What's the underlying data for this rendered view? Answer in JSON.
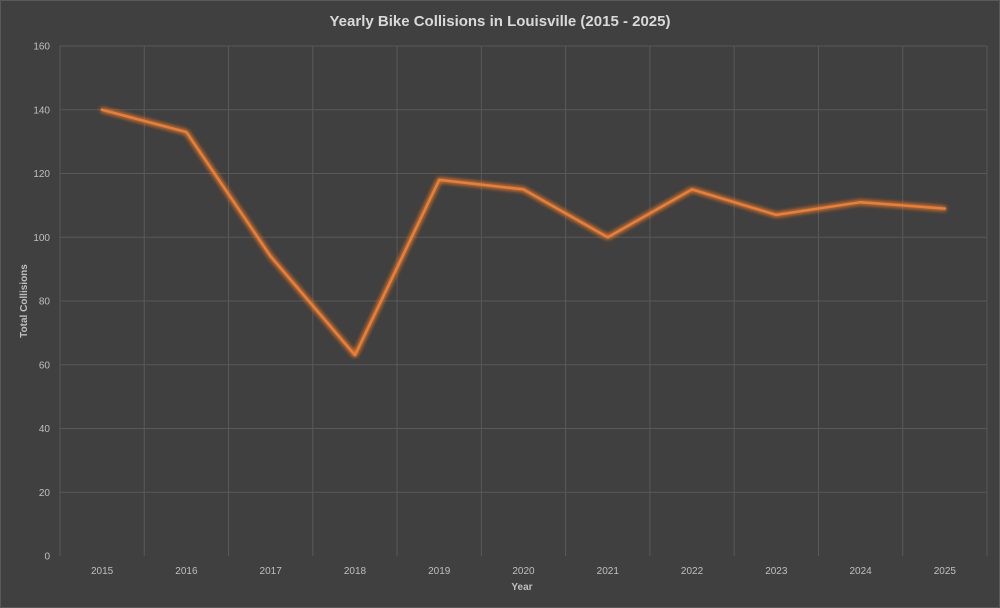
{
  "chart_data": {
    "type": "line",
    "title": "Yearly Bike Collisions in Louisville (2015 - 2025)",
    "xlabel": "Year",
    "ylabel": "Total Collisions",
    "categories": [
      "2015",
      "2016",
      "2017",
      "2018",
      "2019",
      "2020",
      "2021",
      "2022",
      "2023",
      "2024",
      "2025"
    ],
    "series": [
      {
        "values": [
          140,
          133,
          94,
          63,
          118,
          115,
          100,
          115,
          107,
          111,
          109
        ]
      }
    ],
    "ylim": [
      0,
      160
    ],
    "yticks": [
      0,
      20,
      40,
      60,
      80,
      100,
      120,
      140,
      160
    ],
    "grid": true,
    "legend": "none",
    "colors": {
      "background": "#404040",
      "line": "#ed7d31",
      "grid": "#595959",
      "text": "#bfbfbf",
      "title": "#d9d9d9"
    }
  }
}
